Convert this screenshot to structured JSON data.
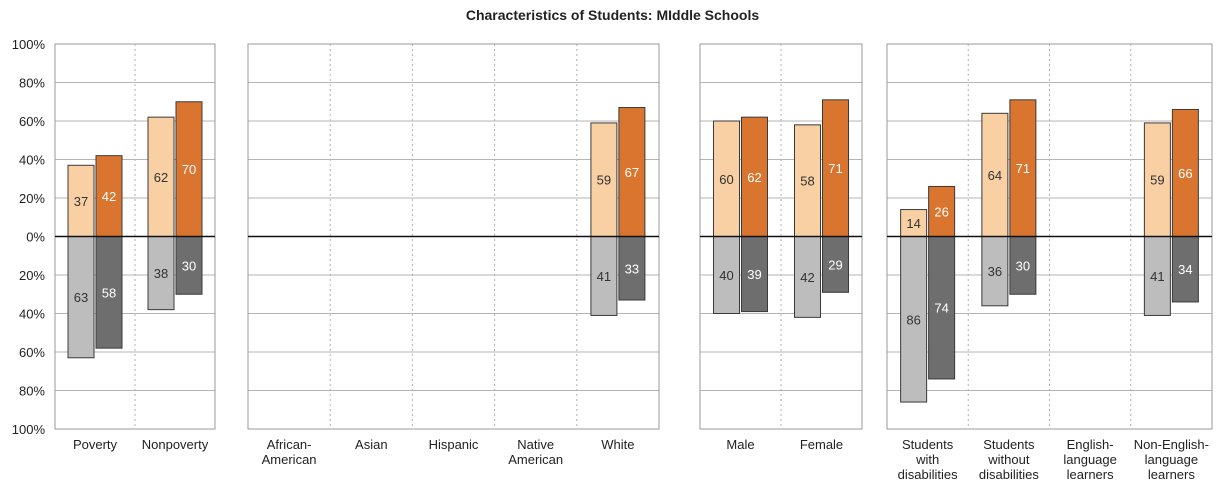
{
  "chart_data": {
    "type": "bar",
    "title": "Characteristics of Students: MIddle Schools",
    "y_ticks_top": [
      "100%",
      "80%",
      "60%",
      "40%",
      "20%",
      "0%"
    ],
    "y_ticks_bottom": [
      "20%",
      "40%",
      "60%",
      "80%",
      "100%"
    ],
    "ylim": [
      -100,
      100
    ],
    "grid": true,
    "colors": {
      "series1_up": "#f9cfa4",
      "series2_up": "#d9752e",
      "series1_down": "#bdbdbd",
      "series2_down": "#6e6e6e",
      "label_dark": "#333333",
      "label_light": "#ffffff"
    },
    "panels": [
      {
        "categories": [
          {
            "label": [
              "Poverty"
            ],
            "up": [
              37,
              42
            ],
            "down": [
              63,
              58
            ]
          },
          {
            "label": [
              "Nonpoverty"
            ],
            "up": [
              62,
              70
            ],
            "down": [
              38,
              30
            ]
          }
        ]
      },
      {
        "categories": [
          {
            "label": [
              "African-",
              "American"
            ],
            "up": null,
            "down": null
          },
          {
            "label": [
              "Asian"
            ],
            "up": null,
            "down": null
          },
          {
            "label": [
              "Hispanic"
            ],
            "up": null,
            "down": null
          },
          {
            "label": [
              "Native",
              "American"
            ],
            "up": null,
            "down": null
          },
          {
            "label": [
              "White"
            ],
            "up": [
              59,
              67
            ],
            "down": [
              41,
              33
            ]
          }
        ]
      },
      {
        "categories": [
          {
            "label": [
              "Male"
            ],
            "up": [
              60,
              62
            ],
            "down": [
              40,
              39
            ]
          },
          {
            "label": [
              "Female"
            ],
            "up": [
              58,
              71
            ],
            "down": [
              42,
              29
            ]
          }
        ]
      },
      {
        "categories": [
          {
            "label": [
              "Students",
              "with",
              "disabilities"
            ],
            "up": [
              14,
              26
            ],
            "down": [
              86,
              74
            ]
          },
          {
            "label": [
              "Students",
              "without",
              "disabilities"
            ],
            "up": [
              64,
              71
            ],
            "down": [
              36,
              30
            ]
          },
          {
            "label": [
              "English-",
              "language",
              "learners"
            ],
            "up": null,
            "down": null
          },
          {
            "label": [
              "Non-English-",
              "language",
              "learners"
            ],
            "up": [
              59,
              66
            ],
            "down": [
              41,
              34
            ]
          }
        ]
      }
    ]
  }
}
